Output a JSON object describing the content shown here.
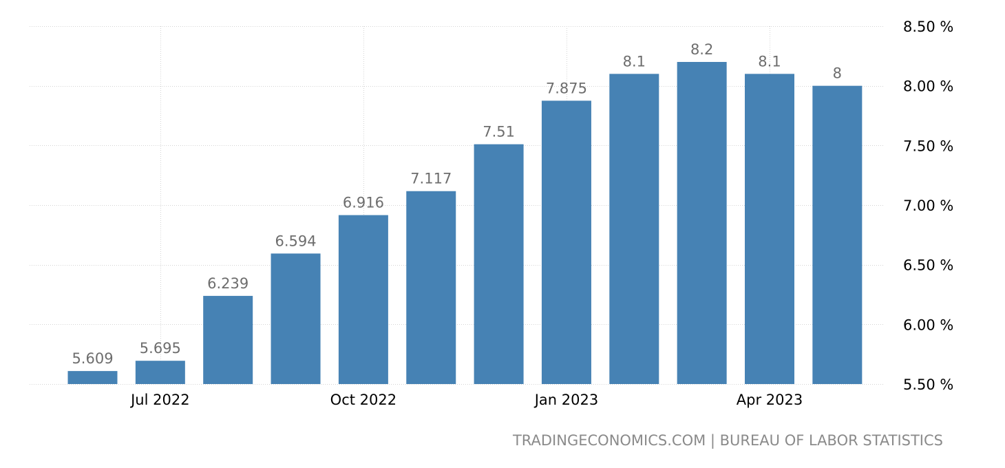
{
  "chart_data": {
    "type": "bar",
    "categories": [
      "2022-06",
      "2022-07",
      "2022-08",
      "2022-09",
      "2022-10",
      "2022-11",
      "2022-12",
      "2023-01",
      "2023-02",
      "2023-03",
      "2023-04",
      "2023-05"
    ],
    "values": [
      5.609,
      5.695,
      6.239,
      6.594,
      6.916,
      7.117,
      7.51,
      7.875,
      8.1,
      8.2,
      8.1,
      8
    ],
    "data_labels": [
      "5.609",
      "5.695",
      "6.239",
      "6.594",
      "6.916",
      "7.117",
      "7.51",
      "7.875",
      "8.1",
      "8.2",
      "8.1",
      "8"
    ],
    "title": "",
    "xlabel": "",
    "ylabel": "",
    "ylim": [
      5.5,
      8.5
    ],
    "y_ticks": [
      {
        "value": 8.5,
        "label": "8.50 %"
      },
      {
        "value": 8.0,
        "label": "8.00 %"
      },
      {
        "value": 7.5,
        "label": "7.50 %"
      },
      {
        "value": 7.0,
        "label": "7.00 %"
      },
      {
        "value": 6.5,
        "label": "6.50 %"
      },
      {
        "value": 6.0,
        "label": "6.00 %"
      },
      {
        "value": 5.5,
        "label": "5.50 %"
      }
    ],
    "x_ticks": [
      {
        "category": "2022-07",
        "label": "Jul 2022"
      },
      {
        "category": "2022-10",
        "label": "Oct 2022"
      },
      {
        "category": "2023-01",
        "label": "Jan 2023"
      },
      {
        "category": "2023-04",
        "label": "Apr 2023"
      }
    ],
    "grid": true,
    "y_axis_position": "right",
    "bar_color": "#4682b4",
    "label_color": "#6d6d6d"
  },
  "source": {
    "text": "TRADINGECONOMICS.COM | BUREAU OF LABOR STATISTICS"
  }
}
